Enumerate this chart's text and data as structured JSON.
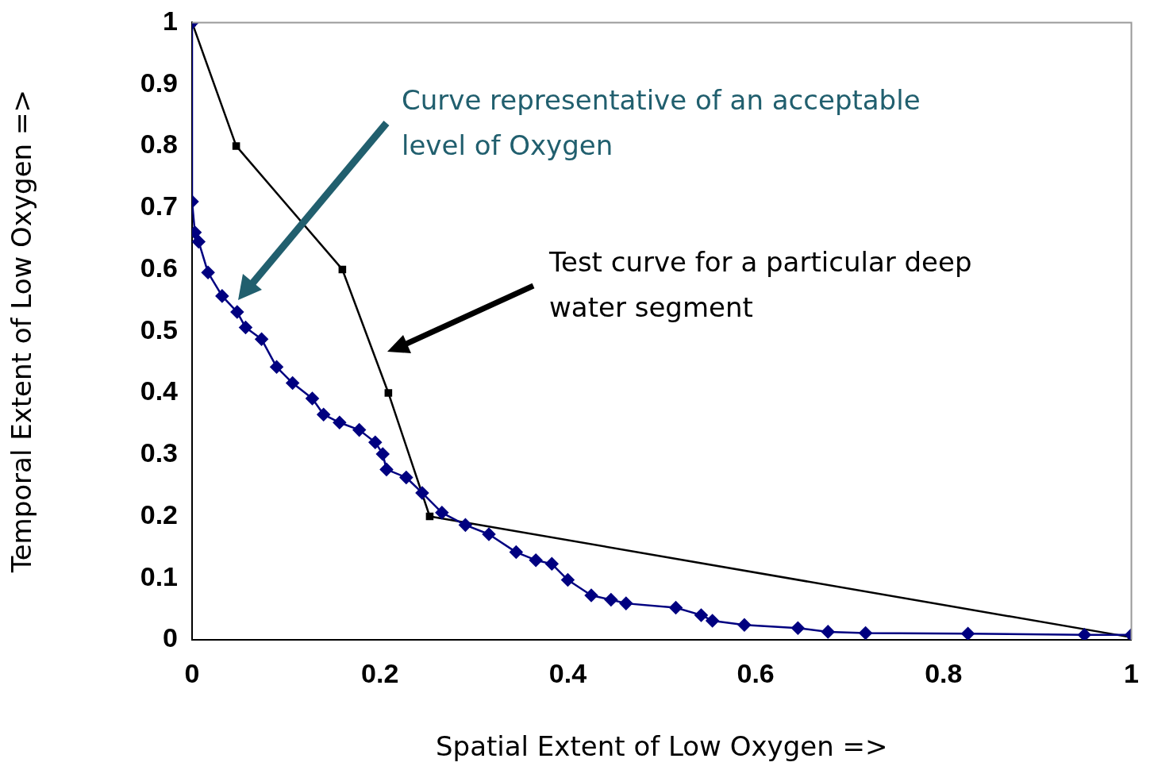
{
  "chart_data": {
    "type": "line",
    "xlabel": "Spatial Extent of Low Oxygen =>",
    "ylabel": "Temporal Extent of Low Oxygen =>",
    "xlim": [
      0,
      1
    ],
    "xticks": [
      0,
      0.2,
      0.4,
      0.6,
      0.8,
      1
    ],
    "ylim": [
      0,
      1
    ],
    "yticks": [
      0,
      0.1,
      0.2,
      0.3,
      0.4,
      0.5,
      0.6,
      0.7,
      0.8,
      0.9,
      1
    ],
    "grid": false,
    "legend": false,
    "line_style": "solid",
    "series": [
      {
        "color": "#000080",
        "marker": "diamond",
        "x": [
          0,
          0,
          0.003,
          0.007,
          0.017,
          0.032,
          0.048,
          0.057,
          0.074,
          0.09,
          0.107,
          0.128,
          0.14,
          0.157,
          0.178,
          0.195,
          0.203,
          0.207,
          0.228,
          0.245,
          0.266,
          0.291,
          0.316,
          0.345,
          0.366,
          0.383,
          0.4,
          0.425,
          0.446,
          0.462,
          0.515,
          0.542,
          0.554,
          0.588,
          0.645,
          0.677,
          0.717,
          0.826,
          0.95,
          1
        ],
        "values": [
          1,
          0.71,
          0.66,
          0.645,
          0.595,
          0.557,
          0.531,
          0.506,
          0.487,
          0.442,
          0.416,
          0.391,
          0.365,
          0.352,
          0.34,
          0.32,
          0.301,
          0.276,
          0.263,
          0.238,
          0.206,
          0.186,
          0.171,
          0.142,
          0.129,
          0.123,
          0.097,
          0.072,
          0.065,
          0.059,
          0.052,
          0.04,
          0.031,
          0.024,
          0.019,
          0.013,
          0.011,
          0.01,
          0.008,
          0.008
        ]
      },
      {
        "color": "#000000",
        "marker": "square",
        "x": [
          0,
          0.047,
          0.16,
          0.209,
          0.253,
          1
        ],
        "values": [
          1,
          0.8,
          0.6,
          0.4,
          0.2,
          0.004
        ]
      }
    ],
    "annotations": [
      "Curve representative of an acceptable level of Oxygen",
      "Test curve for a particular deep water segment"
    ]
  }
}
